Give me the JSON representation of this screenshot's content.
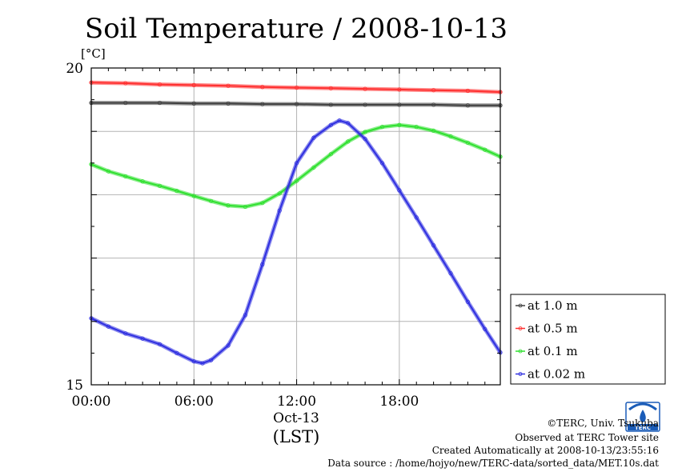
{
  "chart_data": {
    "type": "line",
    "title": "Soil Temperature / 2008-10-13",
    "ylabel": "[°C]",
    "xlabel": "(LST)",
    "date_label": "Oct-13",
    "ylim": [
      15,
      20
    ],
    "yticks": [
      "15",
      "20"
    ],
    "xlim": [
      0,
      23.9
    ],
    "xticks": [
      {
        "value": 0,
        "label": "00:00"
      },
      {
        "value": 6,
        "label": "06:00"
      },
      {
        "value": 12,
        "label": "12:00"
      },
      {
        "value": 18,
        "label": "18:00"
      }
    ],
    "grid": true,
    "legend_position": "right",
    "series": [
      {
        "name": "at 1.0 m",
        "color": "#404040",
        "x": [
          0,
          2,
          4,
          6,
          8,
          10,
          12,
          14,
          16,
          18,
          20,
          22,
          23.9
        ],
        "y": [
          19.45,
          19.45,
          19.45,
          19.44,
          19.44,
          19.43,
          19.43,
          19.42,
          19.42,
          19.42,
          19.42,
          19.41,
          19.41
        ]
      },
      {
        "name": "at 0.5 m",
        "color": "#ff3030",
        "x": [
          0,
          2,
          4,
          6,
          8,
          10,
          12,
          14,
          16,
          18,
          20,
          22,
          23.9
        ],
        "y": [
          19.77,
          19.76,
          19.74,
          19.73,
          19.72,
          19.7,
          19.69,
          19.68,
          19.67,
          19.66,
          19.65,
          19.64,
          19.62
        ]
      },
      {
        "name": "at 0.1 m",
        "color": "#30e030",
        "x": [
          0,
          1,
          2,
          3,
          4,
          5,
          6,
          7,
          8,
          9,
          10,
          11,
          12,
          13,
          14,
          15,
          16,
          17,
          18,
          19,
          20,
          21,
          22,
          23,
          23.9
        ],
        "y": [
          18.48,
          18.37,
          18.29,
          18.21,
          18.14,
          18.06,
          17.98,
          17.9,
          17.83,
          17.81,
          17.87,
          18.02,
          18.22,
          18.43,
          18.64,
          18.84,
          18.99,
          19.07,
          19.1,
          19.07,
          19.01,
          18.92,
          18.82,
          18.71,
          18.6
        ]
      },
      {
        "name": "at 0.02 m",
        "color": "#3030e0",
        "x": [
          0,
          1,
          2,
          3,
          4,
          5,
          6,
          6.5,
          7,
          8,
          9,
          10,
          11,
          12,
          13,
          14,
          14.5,
          15,
          16,
          17,
          18,
          19,
          20,
          21,
          22,
          23,
          23.9
        ],
        "y": [
          16.05,
          15.92,
          15.81,
          15.73,
          15.64,
          15.5,
          15.37,
          15.34,
          15.39,
          15.62,
          16.1,
          16.9,
          17.75,
          18.5,
          18.9,
          19.1,
          19.17,
          19.13,
          18.88,
          18.5,
          18.07,
          17.64,
          17.2,
          16.76,
          16.31,
          15.88,
          15.51
        ]
      }
    ]
  },
  "footer": {
    "copyright": "©TERC, Univ. Tsukuba",
    "observed": "Observed at TERC Tower site",
    "created": "Created Automatically at 2008-10-13/23:55:16",
    "source": "Data source : /home/hojyo/new/TERC-data/sorted_data/MET.10s.dat"
  },
  "logo": {
    "text": "TERC",
    "color": "#1a5cb8"
  }
}
